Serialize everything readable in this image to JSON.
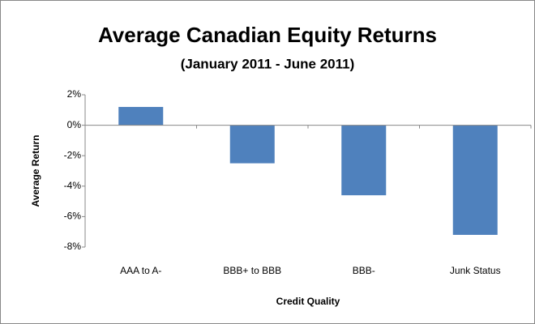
{
  "chart_data": {
    "type": "bar",
    "title": "Average Canadian Equity Returns",
    "subtitle": "(January 2011 - June 2011)",
    "x_label": "Credit Quality",
    "y_label": "Average Return",
    "categories": [
      "AAA to A-",
      "BBB+ to BBB",
      "BBB-",
      "Junk Status"
    ],
    "values": [
      1.2,
      -2.5,
      -4.6,
      -7.2
    ],
    "color": "#4f81bd",
    "ylim": [
      -8,
      2
    ],
    "yticks": [
      {
        "value": 2,
        "label": "2%"
      },
      {
        "value": 0,
        "label": "0%"
      },
      {
        "value": -2,
        "label": "-2%"
      },
      {
        "value": -4,
        "label": "-4%"
      },
      {
        "value": -6,
        "label": "-6%"
      },
      {
        "value": -8,
        "label": "-8%"
      }
    ],
    "grid": false
  }
}
